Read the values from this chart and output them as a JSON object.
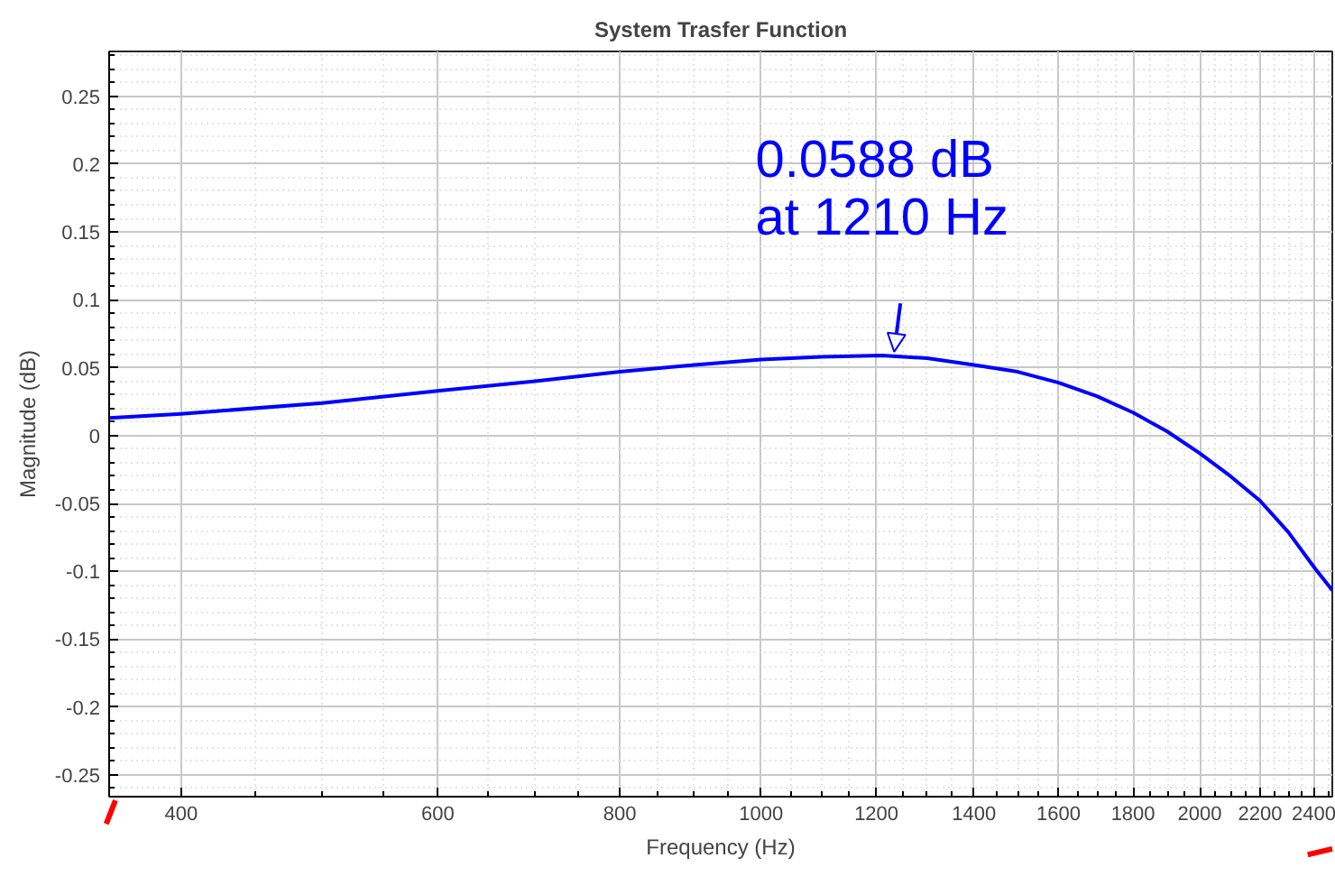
{
  "chart_data": {
    "type": "line",
    "title": "System Trasfer Function",
    "xlabel": "Frequency (Hz)",
    "ylabel": "Magnitude (dB)",
    "log": "x",
    "grid": true,
    "marker": "none",
    "line_style": "solid",
    "xlim": [
      357,
      2466
    ],
    "ylim": [
      -0.266,
      0.283
    ],
    "xticks": [
      400,
      600,
      800,
      1000,
      1200,
      1400,
      1600,
      1800,
      2000,
      2200,
      2400
    ],
    "yticks": [
      -0.25,
      -0.2,
      -0.15,
      -0.1,
      -0.05,
      0,
      0.05,
      0.1,
      0.15,
      0.2,
      0.25
    ],
    "series": [
      {
        "color": "#0000ff",
        "x": [
          357,
          400,
          500,
          600,
          700,
          800,
          900,
          1000,
          1100,
          1210,
          1300,
          1400,
          1500,
          1600,
          1700,
          1800,
          1900,
          2000,
          2100,
          2200,
          2300,
          2400,
          2466
        ],
        "values": [
          0.013,
          0.016,
          0.024,
          0.033,
          0.04,
          0.047,
          0.052,
          0.056,
          0.058,
          0.059,
          0.057,
          0.052,
          0.047,
          0.039,
          0.029,
          0.017,
          0.003,
          -0.013,
          -0.03,
          -0.048,
          -0.071,
          -0.098,
          -0.114
        ]
      }
    ],
    "annotations": [
      {
        "text": "0.0588 dB\nat 1210 Hz",
        "x": 1210,
        "y": 0.059
      }
    ]
  }
}
